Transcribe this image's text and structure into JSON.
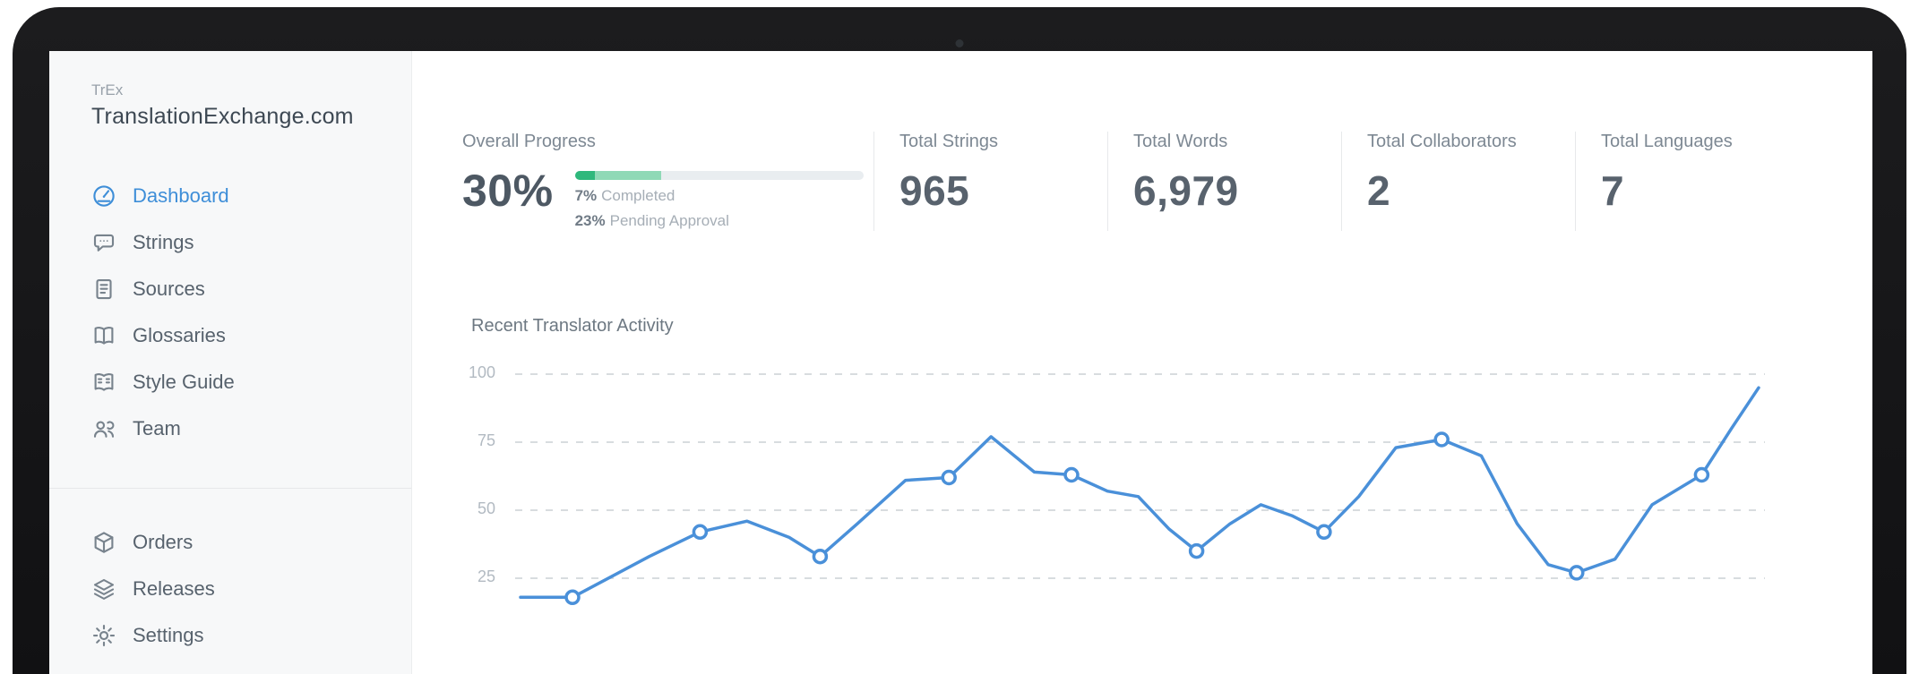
{
  "sidebar": {
    "logo_small": "TrEx",
    "logo_main": "TranslationExchange.com",
    "items_primary": [
      {
        "label": "Dashboard",
        "icon": "dashboard-icon",
        "active": true
      },
      {
        "label": "Strings",
        "icon": "strings-icon",
        "active": false
      },
      {
        "label": "Sources",
        "icon": "sources-icon",
        "active": false
      },
      {
        "label": "Glossaries",
        "icon": "glossaries-icon",
        "active": false
      },
      {
        "label": "Style Guide",
        "icon": "style-guide-icon",
        "active": false
      },
      {
        "label": "Team",
        "icon": "team-icon",
        "active": false
      }
    ],
    "items_secondary": [
      {
        "label": "Orders",
        "icon": "orders-icon",
        "active": false
      },
      {
        "label": "Releases",
        "icon": "releases-icon",
        "active": false
      },
      {
        "label": "Settings",
        "icon": "settings-icon",
        "active": false
      }
    ]
  },
  "stats": {
    "overall": {
      "label": "Overall Progress",
      "value": "30%",
      "completed_pct": 7,
      "pending_pct": 23,
      "completed_strong": "7%",
      "completed_rest": "Completed",
      "pending_strong": "23%",
      "pending_rest": "Pending Approval"
    },
    "cards": [
      {
        "label": "Total Strings",
        "value": "965"
      },
      {
        "label": "Total Words",
        "value": "6,979"
      },
      {
        "label": "Total Collaborators",
        "value": "2"
      },
      {
        "label": "Total Languages",
        "value": "7"
      }
    ]
  },
  "chart_data": {
    "type": "line",
    "title": "Recent Translator Activity",
    "yticks": [
      25,
      50,
      75,
      100
    ],
    "ylim": [
      0,
      110
    ],
    "x_labels": "none",
    "grid": "dashed-horizontal",
    "legend": "none",
    "point_format": "[x_percent, value, has_marker]",
    "series": [
      {
        "name": "Translator Activity",
        "color": "#4a90d9",
        "points": [
          [
            0,
            18,
            0
          ],
          [
            4.2,
            18,
            1
          ],
          [
            10.4,
            33,
            0
          ],
          [
            14.5,
            42,
            1
          ],
          [
            18.3,
            46,
            0
          ],
          [
            21.7,
            40,
            0
          ],
          [
            24.2,
            33,
            1
          ],
          [
            27.2,
            45,
            0
          ],
          [
            31.1,
            61,
            0
          ],
          [
            34.6,
            62,
            1
          ],
          [
            38,
            77,
            0
          ],
          [
            41.5,
            64,
            0
          ],
          [
            44.5,
            63,
            1
          ],
          [
            47.4,
            57,
            0
          ],
          [
            49.9,
            55,
            0
          ],
          [
            52.4,
            43,
            0
          ],
          [
            54.6,
            35,
            1
          ],
          [
            57.3,
            45,
            0
          ],
          [
            59.8,
            52,
            0
          ],
          [
            62.3,
            48,
            0
          ],
          [
            64.9,
            42,
            1
          ],
          [
            67.7,
            55,
            0
          ],
          [
            70.7,
            73,
            0
          ],
          [
            74.4,
            76,
            1
          ],
          [
            77.6,
            70,
            0
          ],
          [
            80.5,
            45,
            0
          ],
          [
            83,
            30,
            0
          ],
          [
            85.3,
            27,
            1
          ],
          [
            88.4,
            32,
            0
          ],
          [
            91.4,
            52,
            0
          ],
          [
            95.4,
            63,
            1
          ],
          [
            97.8,
            80,
            0
          ],
          [
            100,
            95,
            0
          ]
        ]
      }
    ]
  },
  "colors": {
    "accent_blue": "#4190d6",
    "progress_green": "#2fb87c",
    "progress_green_light": "#8fd9b6",
    "text_dark": "#515c66",
    "text_label": "#7d8893",
    "text_muted": "#a9b2ba",
    "grid_line": "#d8dcdf",
    "sidebar_bg": "#f7f8f9",
    "divider": "#e7e9eb",
    "bezel": "#161617"
  }
}
